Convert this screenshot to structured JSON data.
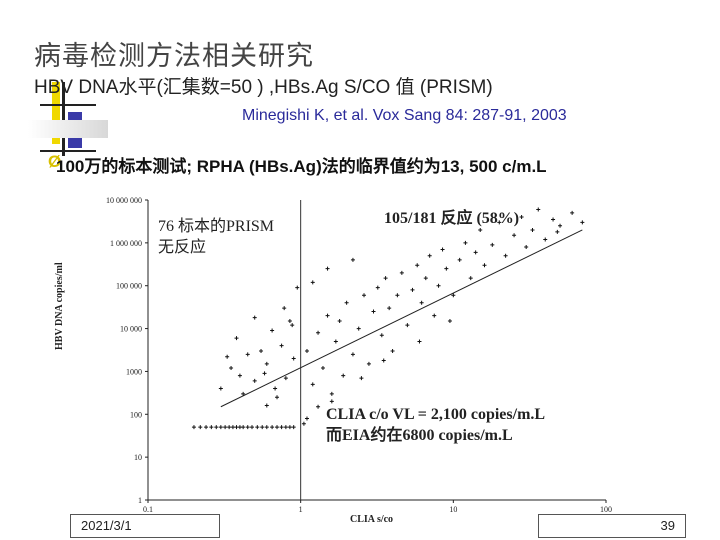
{
  "slide": {
    "title": "病毒检测方法相关研究",
    "subtitle": "HBV DNA水平(汇集数=50 ) ,HBs.Ag S/CO 值 (PRISM)",
    "citation": "Minegishi K, et al. Vox Sang 84: 287-91, 2003",
    "bullet_marker": "Ø",
    "bullet_text": "100万的标本测试; RPHA (HBs.Ag)法的临界值约为13, 500 c/m.L",
    "footer_date": "2021/3/1",
    "page_number": "39",
    "accent_colors": {
      "yellow": "#f0d800",
      "blue": "#2a2a9a",
      "text": "#222222"
    }
  },
  "chart_data": {
    "type": "scatter",
    "xlabel": "CLIA s/co",
    "ylabel": "HBV DNA copies/ml",
    "x_scale": "log",
    "y_scale": "log",
    "xlim": [
      0.1,
      100
    ],
    "ylim": [
      1,
      10000000
    ],
    "x_ticks": [
      "0.1",
      "1",
      "10",
      "100"
    ],
    "y_ticks": [
      "1",
      "10",
      "100",
      "1000",
      "10 000",
      "100 000",
      "1 000 000",
      "10 000 000"
    ],
    "cutoff_x": 1,
    "grid": false,
    "annotations": [
      {
        "text": "76 标本的PRISM",
        "line2": "无反应"
      },
      {
        "text": "105/181 反应 (58%)"
      },
      {
        "text": "CLIA c/o VL = 2,100 copies/m.L",
        "line2": "而EIA约在6800 copies/m.L"
      }
    ],
    "series": [
      {
        "points": [
          [
            0.2,
            50
          ],
          [
            0.22,
            50
          ],
          [
            0.24,
            50
          ],
          [
            0.26,
            50
          ],
          [
            0.28,
            50
          ],
          [
            0.3,
            50
          ],
          [
            0.32,
            50
          ],
          [
            0.34,
            50
          ],
          [
            0.36,
            50
          ],
          [
            0.38,
            50
          ],
          [
            0.4,
            50
          ],
          [
            0.42,
            50
          ],
          [
            0.45,
            50
          ],
          [
            0.48,
            50
          ],
          [
            0.52,
            50
          ],
          [
            0.56,
            50
          ],
          [
            0.6,
            50
          ],
          [
            0.65,
            50
          ],
          [
            0.7,
            50
          ],
          [
            0.75,
            50
          ],
          [
            0.8,
            50
          ],
          [
            0.85,
            50
          ],
          [
            0.9,
            50
          ],
          [
            0.3,
            400
          ],
          [
            0.35,
            1200
          ],
          [
            0.4,
            800
          ],
          [
            0.45,
            2500
          ],
          [
            0.5,
            600
          ],
          [
            0.55,
            3000
          ],
          [
            0.6,
            1500
          ],
          [
            0.65,
            9000
          ],
          [
            0.7,
            250
          ],
          [
            0.75,
            4000
          ],
          [
            0.8,
            700
          ],
          [
            0.85,
            15000
          ],
          [
            0.9,
            2000
          ],
          [
            0.38,
            6000
          ],
          [
            0.42,
            300
          ],
          [
            0.5,
            18000
          ],
          [
            0.58,
            900
          ],
          [
            0.68,
            400
          ],
          [
            0.78,
            30000
          ],
          [
            0.88,
            12000
          ],
          [
            0.33,
            2200
          ],
          [
            0.6,
            160
          ],
          [
            1.1,
            3000
          ],
          [
            1.2,
            500
          ],
          [
            1.3,
            8000
          ],
          [
            1.4,
            1200
          ],
          [
            1.5,
            20000
          ],
          [
            1.6,
            300
          ],
          [
            1.7,
            5000
          ],
          [
            1.8,
            15000
          ],
          [
            1.9,
            800
          ],
          [
            2.0,
            40000
          ],
          [
            2.2,
            2500
          ],
          [
            2.4,
            10000
          ],
          [
            2.6,
            60000
          ],
          [
            2.8,
            1500
          ],
          [
            3.0,
            25000
          ],
          [
            3.2,
            90000
          ],
          [
            3.4,
            7000
          ],
          [
            3.6,
            150000
          ],
          [
            3.8,
            30000
          ],
          [
            4.0,
            3000
          ],
          [
            4.3,
            60000
          ],
          [
            4.6,
            200000
          ],
          [
            5.0,
            12000
          ],
          [
            5.4,
            80000
          ],
          [
            5.8,
            300000
          ],
          [
            6.2,
            40000
          ],
          [
            6.6,
            150000
          ],
          [
            7.0,
            500000
          ],
          [
            7.5,
            20000
          ],
          [
            8.0,
            100000
          ],
          [
            8.5,
            700000
          ],
          [
            9.0,
            250000
          ],
          [
            10,
            60000
          ],
          [
            11,
            400000
          ],
          [
            12,
            1000000
          ],
          [
            13,
            150000
          ],
          [
            14,
            600000
          ],
          [
            15,
            2000000
          ],
          [
            16,
            300000
          ],
          [
            18,
            900000
          ],
          [
            20,
            3000000
          ],
          [
            22,
            500000
          ],
          [
            25,
            1500000
          ],
          [
            28,
            4000000
          ],
          [
            30,
            800000
          ],
          [
            33,
            2000000
          ],
          [
            36,
            6000000
          ],
          [
            40,
            1200000
          ],
          [
            45,
            3500000
          ],
          [
            50,
            2500000
          ],
          [
            1.3,
            150
          ],
          [
            1.6,
            200
          ],
          [
            2.5,
            700
          ],
          [
            3.5,
            1800
          ],
          [
            6.0,
            5000
          ],
          [
            9.5,
            15000
          ],
          [
            1.2,
            120000
          ],
          [
            1.5,
            250000
          ],
          [
            2.2,
            400000
          ],
          [
            0.95,
            90000
          ],
          [
            60,
            5000000
          ],
          [
            70,
            3000000
          ],
          [
            48,
            1800000
          ],
          [
            1.1,
            80
          ],
          [
            1.05,
            60
          ]
        ]
      }
    ],
    "regression_line": {
      "from": [
        0.3,
        150
      ],
      "to": [
        70,
        2000000
      ]
    }
  }
}
